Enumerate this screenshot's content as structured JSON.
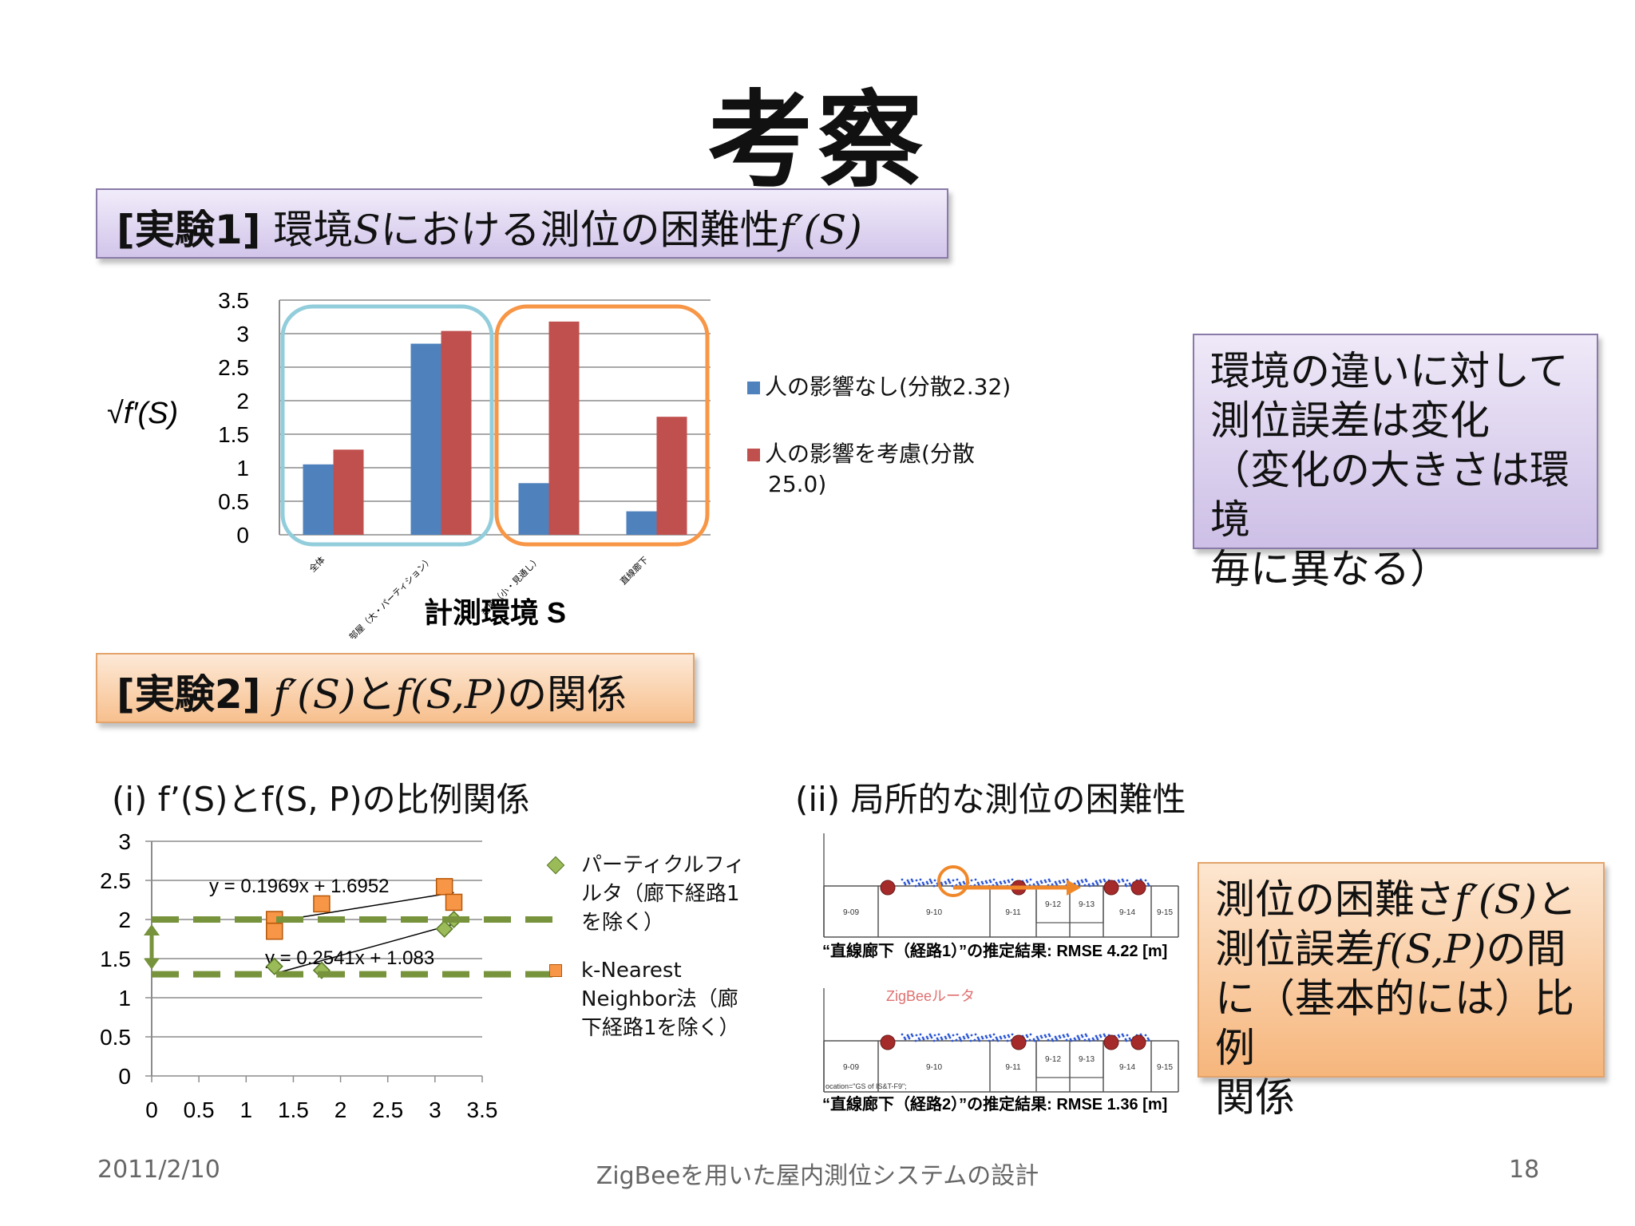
{
  "slide": {
    "title": "考察",
    "date": "2011/2/10",
    "footer_title": "ZigBeeを用いた屋内測位システムの設計",
    "page_number": "18"
  },
  "exp1": {
    "label": "[実験1]",
    "heading_pre": "環境",
    "heading_var": "S",
    "heading_mid": "における測位の困難性",
    "heading_func": "f′(S)"
  },
  "exp2": {
    "label": "[実験2]",
    "heading_a": "f′(S)",
    "heading_mid": "と",
    "heading_b": "f(S,P)",
    "heading_post": "の関係"
  },
  "note1": {
    "lines": [
      "環境の違いに対して",
      "測位誤差は変化",
      "（変化の大きさは環境",
      "毎に異なる）"
    ]
  },
  "note2": {
    "l1_pre": "測位の困難さ",
    "l1_func": "f′(S)",
    "l1_post": "と",
    "l2_pre": "測位誤差",
    "l2_func": "f(S,P)",
    "l2_post": "の間",
    "l3": "に（基本的には）比例",
    "l4": "関係"
  },
  "sub1": {
    "title": "(i) f’(S)とf(S, P)の比例関係"
  },
  "sub2": {
    "title": "(ii) 局所的な測位の困難性",
    "caption1": "“直線廊下（経路1）”の推定結果: RMSE 4.22 [m]",
    "caption2": "“直線廊下（経路2）”の推定結果: RMSE 1.36 [m]",
    "router_label": "ZigBeeルータ",
    "small_label": "ocation=\"GS of IS&T-F9\";",
    "rooms": [
      "9-09",
      "9-10",
      "9-11",
      "9-12",
      "9-13",
      "9-14",
      "9-15"
    ]
  },
  "chart_data": [
    {
      "type": "bar",
      "title": "",
      "ylabel": "√f′(S)",
      "xlabel": "計測環境 S",
      "ylim": [
        0,
        3.5
      ],
      "yticks": [
        "3.5",
        "3",
        "2.5",
        "2",
        "1.5",
        "1",
        "0.5",
        "0"
      ],
      "categories": [
        "全体",
        "部屋（大・パーティション）",
        "部屋（小・見通し）",
        "直線廊下"
      ],
      "series": [
        {
          "name": "人の影響なし(分散2.32)",
          "color": "#4f81bd",
          "values": [
            1.05,
            2.85,
            0.77,
            0.35
          ]
        },
        {
          "name": "人の影響を考慮(分散25.0)",
          "color": "#c0504d",
          "values": [
            1.27,
            3.04,
            3.18,
            1.76
          ]
        }
      ],
      "legend_labels": [
        [
          "人の影響なし(分散2.32)"
        ],
        [
          "人の影響を考慮(分散",
          "25.0)"
        ]
      ],
      "grid": true,
      "legend": "right"
    },
    {
      "type": "scatter",
      "xlim": [
        0,
        3.5
      ],
      "ylim": [
        0,
        3
      ],
      "xticks": [
        "0",
        "0.5",
        "1",
        "1.5",
        "2",
        "2.5",
        "3",
        "3.5"
      ],
      "yticks": [
        "3",
        "2.5",
        "2",
        "1.5",
        "1",
        "0.5",
        "0"
      ],
      "series": [
        {
          "name": "パーティクルフィルタ（廊下経路1を除く）",
          "color": "#9bbb59",
          "marker": "diamond",
          "x": [
            1.3,
            1.8,
            3.1,
            3.2
          ],
          "y": [
            1.4,
            1.35,
            1.88,
            2.0
          ],
          "trendline": "y = 0.2541x + 1.083"
        },
        {
          "name": "k-Nearest Neighbor法（廊下経路1を除く）",
          "color": "#f79646",
          "marker": "square",
          "x": [
            1.3,
            1.3,
            1.8,
            3.1,
            3.2
          ],
          "y": [
            2.0,
            1.85,
            2.2,
            2.42,
            2.22
          ],
          "trendline": "y = 0.1969x + 1.6952"
        }
      ],
      "legend_labels": [
        [
          "パーティクルフィ",
          "ルタ（廊下経路1",
          "を除く）"
        ],
        [
          "k-Nearest",
          "Neighbor法（廊",
          "下経路1を除く）"
        ]
      ],
      "grid": true,
      "legend": "right"
    }
  ]
}
